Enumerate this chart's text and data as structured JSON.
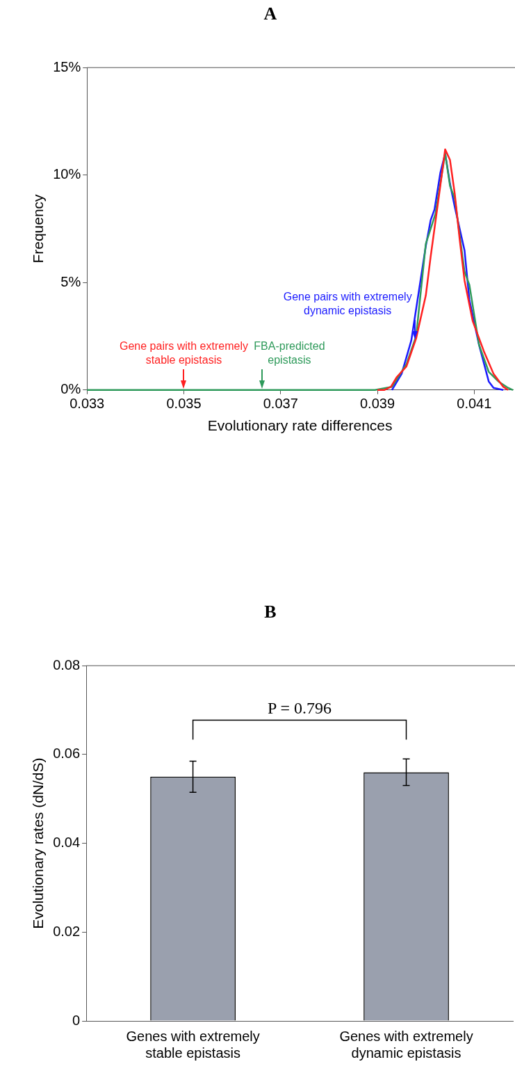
{
  "chart_data": [
    {
      "type": "line",
      "title": "A",
      "xlabel": "Evolutionary rate differences",
      "ylabel": "Frequency",
      "xlim": [
        0.033,
        0.0418
      ],
      "xticks": [
        0.033,
        0.035,
        0.037,
        0.039,
        0.041
      ],
      "ylim": [
        0,
        15
      ],
      "yticks": [
        {
          "value": 0,
          "label": "0%"
        },
        {
          "value": 5,
          "label": "5%"
        },
        {
          "value": 10,
          "label": "10%"
        },
        {
          "value": 15,
          "label": "15%"
        }
      ],
      "series": [
        {
          "color": "#ff2020",
          "x": [
            0.039,
            0.03914,
            0.03928,
            0.0394,
            0.0396,
            0.0398,
            0.04,
            0.0401,
            0.0403,
            0.0404,
            0.0405,
            0.0406,
            0.0407,
            0.0408,
            0.04097,
            0.0412,
            0.0414,
            0.0416,
            0.0417
          ],
          "values": [
            0,
            0,
            0.15,
            0.6,
            1.1,
            2.4,
            4.4,
            6.2,
            9.5,
            11.2,
            10.7,
            9.1,
            7,
            5.1,
            3.2,
            1.8,
            0.75,
            0.15,
            0
          ]
        },
        {
          "color": "#2e9a5a",
          "x": [
            0.033,
            0.03895,
            0.0393,
            0.0396,
            0.0398,
            0.04,
            0.0402,
            0.0404,
            0.0405,
            0.0406,
            0.0408,
            0.0409,
            0.0411,
            0.0413,
            0.0415,
            0.0417,
            0.0418
          ],
          "values": [
            0,
            0,
            0.15,
            1.2,
            2.5,
            6.8,
            8.2,
            11,
            9.5,
            8.9,
            5.5,
            4.9,
            2.1,
            0.85,
            0.4,
            0.1,
            0
          ]
        },
        {
          "color": "#1a1aff",
          "x": [
            0.0393,
            0.0395,
            0.0397,
            0.04,
            0.0401,
            0.04018,
            0.0403,
            0.0404,
            0.0405,
            0.0406,
            0.0408,
            0.0409,
            0.0411,
            0.0413,
            0.0414,
            0.0416
          ],
          "values": [
            0,
            0.75,
            2.3,
            6.7,
            7.9,
            8.4,
            10.1,
            11,
            9.6,
            8.5,
            6.5,
            4.2,
            2.1,
            0.4,
            0.1,
            0
          ]
        }
      ],
      "annotations": [
        {
          "text": "Gene pairs with extremely\nstable epistasis",
          "x": 0.035,
          "y": 0
        },
        {
          "text": "FBA-predicted\nepistasis",
          "x": 0.03662,
          "y": 0
        },
        {
          "text": "Gene pairs with extremely\ndynamic epistasis",
          "x": 0.03977,
          "y": 2.3
        }
      ]
    },
    {
      "type": "bar",
      "title": "B",
      "ylabel": "Evolutionary rates (dN/dS)",
      "categories": [
        "Genes with extremely\nstable epistasis",
        "Genes with extremely\ndynamic epistasis"
      ],
      "values": [
        0.055,
        0.056
      ],
      "errors": [
        0.0035,
        0.003
      ],
      "color": "#9aa0ae",
      "ylim": [
        0,
        0.08
      ],
      "yticks": [
        {
          "value": 0,
          "label": "0"
        },
        0.02,
        0.04,
        0.06,
        0.08
      ],
      "annotations": [
        "P = 0.796"
      ]
    }
  ]
}
